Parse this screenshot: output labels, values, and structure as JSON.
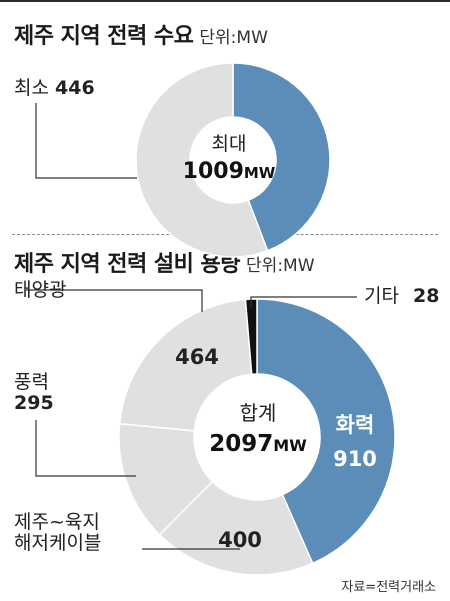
{
  "chart_data": [
    {
      "type": "pie",
      "title": "제주 지역 전력 수요",
      "unit": "단위:MW",
      "center_label": "최대",
      "center_value": "1009",
      "center_unit": "MW",
      "max_value": 1009,
      "slices": [
        {
          "label": "최소",
          "value": 446,
          "color": "#5b8db8"
        },
        {
          "label": "",
          "value": 563,
          "color": "#e0e0e0"
        }
      ]
    },
    {
      "type": "pie",
      "title": "제주 지역 전력 설비 용량",
      "unit": "단위:MW",
      "center_label": "합계",
      "center_value": "2097",
      "center_unit": "MW",
      "total": 2097,
      "slices": [
        {
          "label": "화력",
          "value": 910,
          "color": "#5b8db8"
        },
        {
          "label": "제주~육지 해저케이블",
          "value": 400,
          "color": "#e0e0e0"
        },
        {
          "label": "풍력",
          "value": 295,
          "color": "#e0e0e0"
        },
        {
          "label": "태양광",
          "value": 464,
          "color": "#e0e0e0"
        },
        {
          "label": "기타",
          "value": 28,
          "color": "#111111"
        }
      ]
    }
  ],
  "labels": {
    "demand_min_name": "최소",
    "demand_min_value": "446",
    "solar_name": "태양광",
    "solar_value": "464",
    "wind_name": "풍력",
    "wind_value": "295",
    "cable_name_1": "제주~육지",
    "cable_name_2": "해저케이블",
    "cable_value": "400",
    "thermal_name": "화력",
    "thermal_value": "910",
    "other_name": "기타",
    "other_value": "28"
  },
  "source": "자료=전력거래소"
}
